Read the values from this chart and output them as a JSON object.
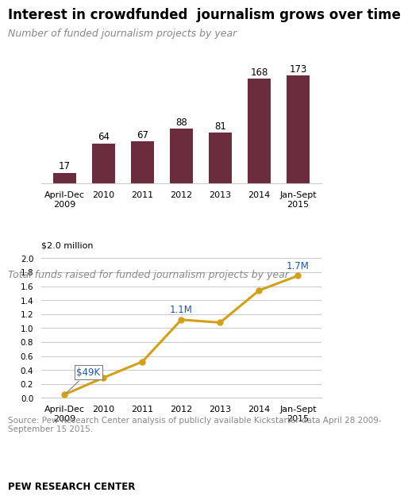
{
  "title": "Interest in crowdfunded  journalism grows over time",
  "bar_subtitle": "Number of funded journalism projects by year",
  "line_subtitle": "Total funds raised for funded journalism projects by year",
  "categories": [
    "April-Dec\n2009",
    "2010",
    "2011",
    "2012",
    "2013",
    "2014",
    "Jan-Sept\n2015"
  ],
  "bar_values": [
    17,
    64,
    67,
    88,
    81,
    168,
    173
  ],
  "bar_color": "#6b2d3e",
  "line_values": [
    0.049,
    0.29,
    0.52,
    1.12,
    1.08,
    1.54,
    1.75
  ],
  "line_color": "#d4a017",
  "line_ylabel": "$2.0 million",
  "line_yticks": [
    0.0,
    0.2,
    0.4,
    0.6,
    0.8,
    1.0,
    1.2,
    1.4,
    1.6,
    1.8,
    2.0
  ],
  "source_text": "Source: Pew Research Center analysis of publicly available Kickstarter data April 28 2009-\nSeptember 15 2015.",
  "footer_text": "PEW RESEARCH CENTER",
  "bg_color": "#ffffff",
  "grid_color": "#cccccc",
  "title_color": "#000000",
  "subtitle_color": "#888888",
  "source_color": "#888888",
  "annotation_color": "#2255aa"
}
